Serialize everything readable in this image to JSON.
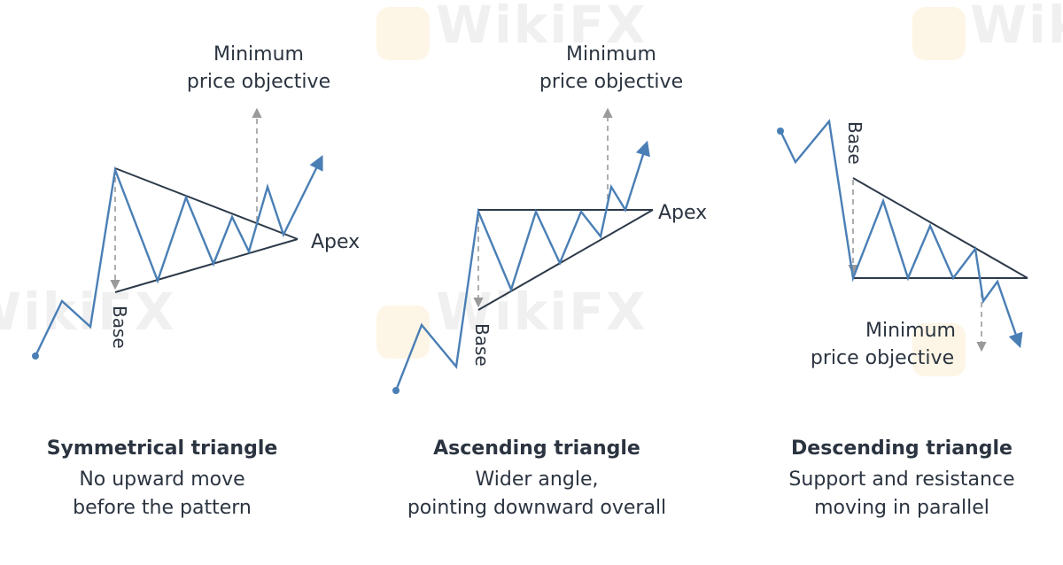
{
  "watermark": "WikiFX",
  "colors": {
    "price_line": "#4a7fb5",
    "pattern_line": "#2d3a4a",
    "guide_dash": "#9a9a9a",
    "text": "#2b3440"
  },
  "panels": [
    {
      "id": "symmetrical",
      "title": "Symmetrical triangle",
      "desc_line1": "No upward move",
      "desc_line2": "before the pattern",
      "target_line1": "Minimum",
      "target_line2": "price objective",
      "apex_label": "Apex",
      "base_label": "Base"
    },
    {
      "id": "ascending",
      "title": "Ascending triangle",
      "desc_line1": "Wider angle,",
      "desc_line2": "pointing downward overall",
      "target_line1": "Minimum",
      "target_line2": "price objective",
      "apex_label": "Apex",
      "base_label": "Base"
    },
    {
      "id": "descending",
      "title": "Descending triangle",
      "desc_line1": "Support and resistance",
      "desc_line2": "moving in parallel",
      "target_line1": "Minimum",
      "target_line2": "price objective",
      "base_label": "Base"
    }
  ]
}
